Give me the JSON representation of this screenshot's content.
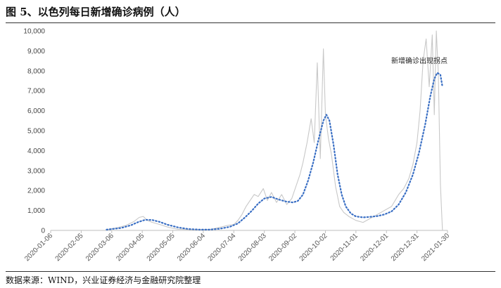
{
  "figure": {
    "title": "图 5、以色列每日新增确诊病例（人）",
    "source": "数据来源：WIND，兴业证券经济与金融研究院整理"
  },
  "colors": {
    "raw": "#c8c8c8",
    "trend": "#3a6fc4",
    "axis": "#bfbfbf"
  },
  "chart_data": {
    "type": "line",
    "title": "",
    "xlabel": "",
    "ylabel": "",
    "ylim": [
      0,
      10000
    ],
    "grid": false,
    "legend": "none",
    "y_ticks": [
      "0",
      "1,000",
      "2,000",
      "3,000",
      "4,000",
      "5,000",
      "6,000",
      "7,000",
      "8,000",
      "9,000",
      "10,000"
    ],
    "x_ticks": [
      "2020-01-06",
      "2020-02-05",
      "2020-03-06",
      "2020-04-05",
      "2020-05-05",
      "2020-06-04",
      "2020-07-04",
      "2020-08-03",
      "2020-09-02",
      "2020-10-02",
      "2020-11-01",
      "2020-12-01",
      "2020-12-31",
      "2021-01-30"
    ],
    "annotation": "新增确诊出现拐点",
    "series": [
      {
        "style": "solid-light",
        "x": [
          "2020-03-01",
          "2020-03-10",
          "2020-03-20",
          "2020-03-28",
          "2020-04-02",
          "2020-04-06",
          "2020-04-10",
          "2020-04-15",
          "2020-04-22",
          "2020-05-01",
          "2020-05-10",
          "2020-05-25",
          "2020-06-04",
          "2020-06-12",
          "2020-06-20",
          "2020-06-28",
          "2020-07-04",
          "2020-07-08",
          "2020-07-12",
          "2020-07-16",
          "2020-07-20",
          "2020-07-24",
          "2020-07-28",
          "2020-08-02",
          "2020-08-06",
          "2020-08-10",
          "2020-08-15",
          "2020-08-20",
          "2020-08-25",
          "2020-08-30",
          "2020-09-03",
          "2020-09-07",
          "2020-09-10",
          "2020-09-14",
          "2020-09-18",
          "2020-09-21",
          "2020-09-24",
          "2020-09-27",
          "2020-09-30",
          "2020-10-02",
          "2020-10-05",
          "2020-10-08",
          "2020-10-12",
          "2020-10-16",
          "2020-10-20",
          "2020-10-25",
          "2020-11-01",
          "2020-11-08",
          "2020-11-15",
          "2020-11-22",
          "2020-11-29",
          "2020-12-06",
          "2020-12-13",
          "2020-12-18",
          "2020-12-23",
          "2020-12-27",
          "2020-12-31",
          "2021-01-03",
          "2021-01-06",
          "2021-01-09",
          "2021-01-12",
          "2021-01-15",
          "2021-01-17",
          "2021-01-19",
          "2021-01-21",
          "2021-01-23",
          "2021-01-25"
        ],
        "values": [
          30,
          120,
          250,
          450,
          650,
          700,
          500,
          400,
          300,
          150,
          60,
          40,
          30,
          60,
          150,
          250,
          300,
          500,
          800,
          1200,
          1500,
          1800,
          1700,
          2100,
          1500,
          1900,
          1400,
          1800,
          1300,
          1600,
          2200,
          2800,
          3400,
          4400,
          5600,
          4400,
          8400,
          3600,
          9100,
          5800,
          4600,
          3800,
          2200,
          1200,
          900,
          700,
          500,
          400,
          600,
          800,
          1000,
          1200,
          1800,
          2100,
          2600,
          3300,
          4400,
          6000,
          8500,
          9600,
          7200,
          9800,
          5800,
          10000,
          7800,
          2300,
          0
        ]
      },
      {
        "style": "dotted",
        "x": [
          "2020-03-01",
          "2020-03-15",
          "2020-03-25",
          "2020-04-01",
          "2020-04-08",
          "2020-04-15",
          "2020-04-22",
          "2020-04-30",
          "2020-05-10",
          "2020-05-20",
          "2020-06-01",
          "2020-06-10",
          "2020-06-20",
          "2020-06-30",
          "2020-07-08",
          "2020-07-15",
          "2020-07-22",
          "2020-07-28",
          "2020-08-03",
          "2020-08-10",
          "2020-08-17",
          "2020-08-24",
          "2020-08-31",
          "2020-09-05",
          "2020-09-10",
          "2020-09-15",
          "2020-09-20",
          "2020-09-25",
          "2020-09-30",
          "2020-10-03",
          "2020-10-06",
          "2020-10-10",
          "2020-10-14",
          "2020-10-18",
          "2020-10-22",
          "2020-10-27",
          "2020-11-01",
          "2020-11-08",
          "2020-11-15",
          "2020-11-22",
          "2020-11-29",
          "2020-12-06",
          "2020-12-13",
          "2020-12-20",
          "2020-12-27",
          "2021-01-02",
          "2021-01-08",
          "2021-01-13",
          "2021-01-17",
          "2021-01-20",
          "2021-01-23",
          "2021-01-25"
        ],
        "values": [
          40,
          120,
          260,
          420,
          530,
          520,
          430,
          280,
          150,
          70,
          40,
          40,
          80,
          180,
          350,
          650,
          1000,
          1350,
          1600,
          1680,
          1550,
          1450,
          1400,
          1480,
          1800,
          2500,
          3400,
          4500,
          5500,
          5800,
          5500,
          4300,
          2800,
          1800,
          1200,
          850,
          700,
          650,
          680,
          720,
          800,
          950,
          1300,
          1900,
          2800,
          3900,
          5300,
          6700,
          7600,
          7900,
          7800,
          7200
        ]
      }
    ]
  }
}
